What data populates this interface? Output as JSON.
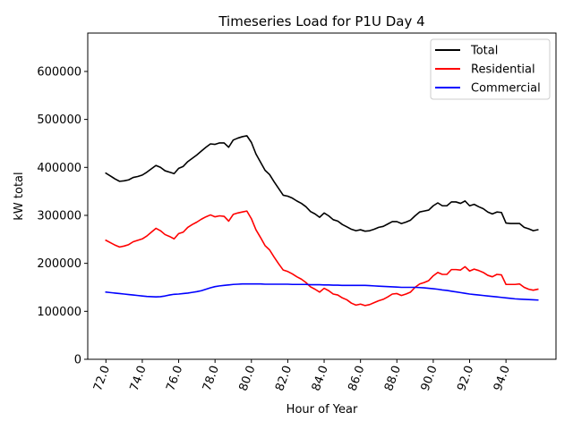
{
  "chart_data": {
    "type": "line",
    "title": "Timeseries Load for P1U   Day 4",
    "xlabel": "Hour of Year",
    "ylabel": "kW total",
    "xlim": [
      71.0,
      96.75
    ],
    "ylim": [
      0,
      680000
    ],
    "xticks": [
      72,
      74,
      76,
      78,
      80,
      82,
      84,
      86,
      88,
      90,
      92,
      94
    ],
    "xtick_labels": [
      "72.0",
      "74.0",
      "76.0",
      "78.0",
      "80.0",
      "82.0",
      "84.0",
      "86.0",
      "88.0",
      "90.0",
      "92.0",
      "94.0"
    ],
    "yticks": [
      0,
      100000,
      200000,
      300000,
      400000,
      500000,
      600000
    ],
    "ytick_labels": [
      "0",
      "100000",
      "200000",
      "300000",
      "400000",
      "500000",
      "600000"
    ],
    "legend_position": "top-right",
    "x": [
      72.0,
      72.25,
      72.5,
      72.75,
      73.0,
      73.25,
      73.5,
      73.75,
      74.0,
      74.25,
      74.5,
      74.75,
      75.0,
      75.25,
      75.5,
      75.75,
      76.0,
      76.25,
      76.5,
      76.75,
      77.0,
      77.25,
      77.5,
      77.75,
      78.0,
      78.25,
      78.5,
      78.75,
      79.0,
      79.25,
      79.5,
      79.75,
      80.0,
      80.25,
      80.5,
      80.75,
      81.0,
      81.25,
      81.5,
      81.75,
      82.0,
      82.25,
      82.5,
      82.75,
      83.0,
      83.25,
      83.5,
      83.75,
      84.0,
      84.25,
      84.5,
      84.75,
      85.0,
      85.25,
      85.5,
      85.75,
      86.0,
      86.25,
      86.5,
      86.75,
      87.0,
      87.25,
      87.5,
      87.75,
      88.0,
      88.25,
      88.5,
      88.75,
      89.0,
      89.25,
      89.5,
      89.75,
      90.0,
      90.25,
      90.5,
      90.75,
      91.0,
      91.25,
      91.5,
      91.75,
      92.0,
      92.25,
      92.5,
      92.75,
      93.0,
      93.25,
      93.5,
      93.75,
      94.0,
      94.25,
      94.5,
      94.75,
      95.0,
      95.25,
      95.5,
      95.75
    ],
    "series": [
      {
        "name": "Total",
        "color": "#000000",
        "values": [
          388000,
          382000,
          376000,
          371000,
          372000,
          374000,
          379000,
          381000,
          384000,
          390000,
          397000,
          404000,
          400000,
          393000,
          390000,
          387000,
          398000,
          402000,
          412000,
          419000,
          426000,
          434000,
          442000,
          449000,
          448000,
          451000,
          451000,
          442000,
          457000,
          461000,
          464000,
          466000,
          452000,
          428000,
          411000,
          394000,
          385000,
          370000,
          356000,
          342000,
          340000,
          336000,
          330000,
          325000,
          318000,
          308000,
          303000,
          296000,
          305000,
          299000,
          291000,
          288000,
          281000,
          276000,
          271000,
          268000,
          270000,
          267000,
          268000,
          271000,
          275000,
          277000,
          282000,
          287000,
          287000,
          283000,
          286000,
          290000,
          299000,
          307000,
          309000,
          311000,
          320000,
          326000,
          320000,
          320000,
          328000,
          328000,
          325000,
          330000,
          320000,
          323000,
          318000,
          314000,
          307000,
          303000,
          307000,
          306000,
          284000,
          283000,
          283000,
          283000,
          275000,
          272000,
          268000,
          270000
        ]
      },
      {
        "name": "Residential",
        "color": "#ff0000",
        "values": [
          248000,
          243000,
          238000,
          234000,
          236000,
          239000,
          245000,
          248000,
          251000,
          257000,
          265000,
          273000,
          268000,
          260000,
          256000,
          251000,
          262000,
          265000,
          275000,
          281000,
          286000,
          292000,
          297000,
          301000,
          297000,
          299000,
          298000,
          288000,
          302000,
          305000,
          307000,
          309000,
          293000,
          270000,
          254000,
          237000,
          228000,
          213000,
          199000,
          186000,
          183000,
          178000,
          172000,
          167000,
          160000,
          151000,
          146000,
          140000,
          148000,
          143000,
          136000,
          134000,
          128000,
          124000,
          117000,
          113000,
          115000,
          112000,
          114000,
          118000,
          122000,
          125000,
          130000,
          136000,
          137000,
          133000,
          136000,
          140000,
          150000,
          157000,
          160000,
          164000,
          174000,
          181000,
          177000,
          177000,
          187000,
          187000,
          186000,
          193000,
          184000,
          188000,
          185000,
          181000,
          175000,
          172000,
          177000,
          176000,
          156000,
          156000,
          156000,
          157000,
          150000,
          146000,
          144000,
          146000
        ]
      },
      {
        "name": "Commercial",
        "color": "#0000ff",
        "values": [
          140000,
          139000,
          138000,
          137000,
          136000,
          135000,
          134000,
          133000,
          132000,
          131000,
          130500,
          130000,
          130500,
          132000,
          134000,
          135500,
          136000,
          137000,
          138000,
          139500,
          141000,
          143000,
          146000,
          149000,
          151500,
          153000,
          154000,
          155000,
          156000,
          156500,
          157000,
          157000,
          157000,
          157000,
          157000,
          156500,
          156500,
          156500,
          156500,
          156500,
          156500,
          156000,
          156000,
          156000,
          156000,
          155500,
          155500,
          155500,
          155000,
          155000,
          154500,
          154500,
          154000,
          154000,
          154000,
          154000,
          154000,
          154000,
          153500,
          153000,
          152500,
          152000,
          151500,
          151000,
          150500,
          150000,
          150000,
          150000,
          150000,
          149500,
          149000,
          148000,
          147000,
          146000,
          144500,
          143500,
          142000,
          140500,
          139000,
          137500,
          136000,
          135000,
          134000,
          133000,
          132000,
          131000,
          130000,
          129000,
          128000,
          127000,
          126000,
          125500,
          125000,
          124500,
          124000,
          123500
        ]
      }
    ]
  }
}
